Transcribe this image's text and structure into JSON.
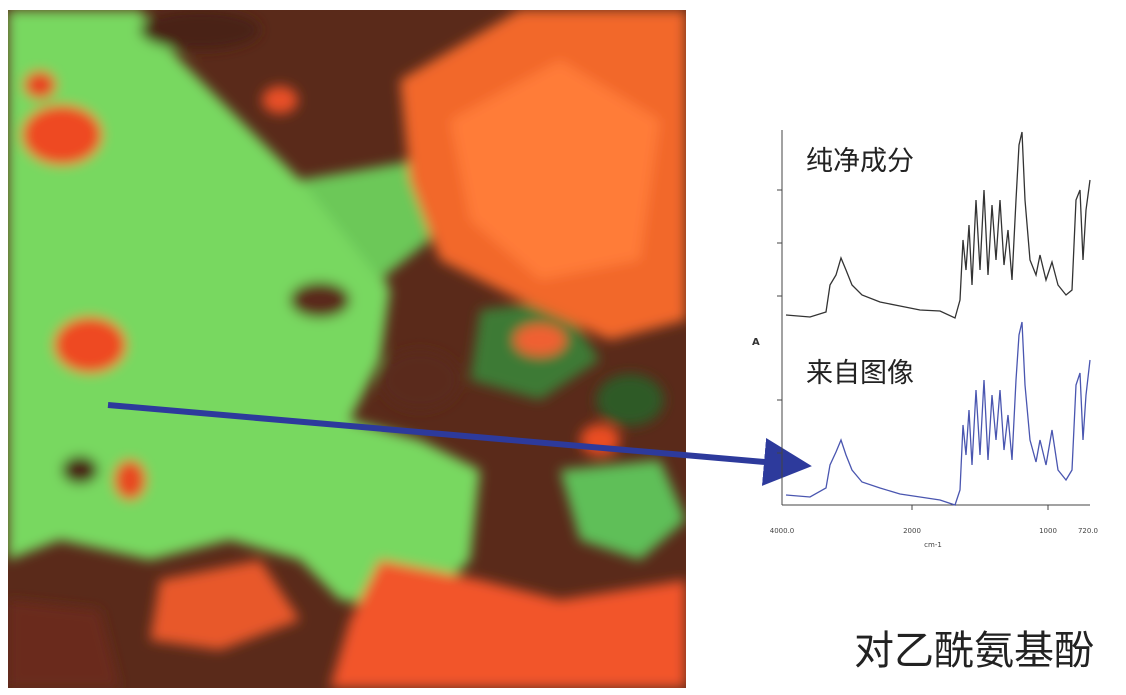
{
  "spectra": {
    "traces": [
      {
        "label": "纯净成分"
      },
      {
        "label": "来自图像"
      }
    ],
    "y_axis_label": "A",
    "x_tick_labels": [
      "4000.0",
      "2000",
      "1000",
      "720.0"
    ],
    "x_axis_label": "cm-1"
  },
  "caption": "对乙酰氨基酚"
}
